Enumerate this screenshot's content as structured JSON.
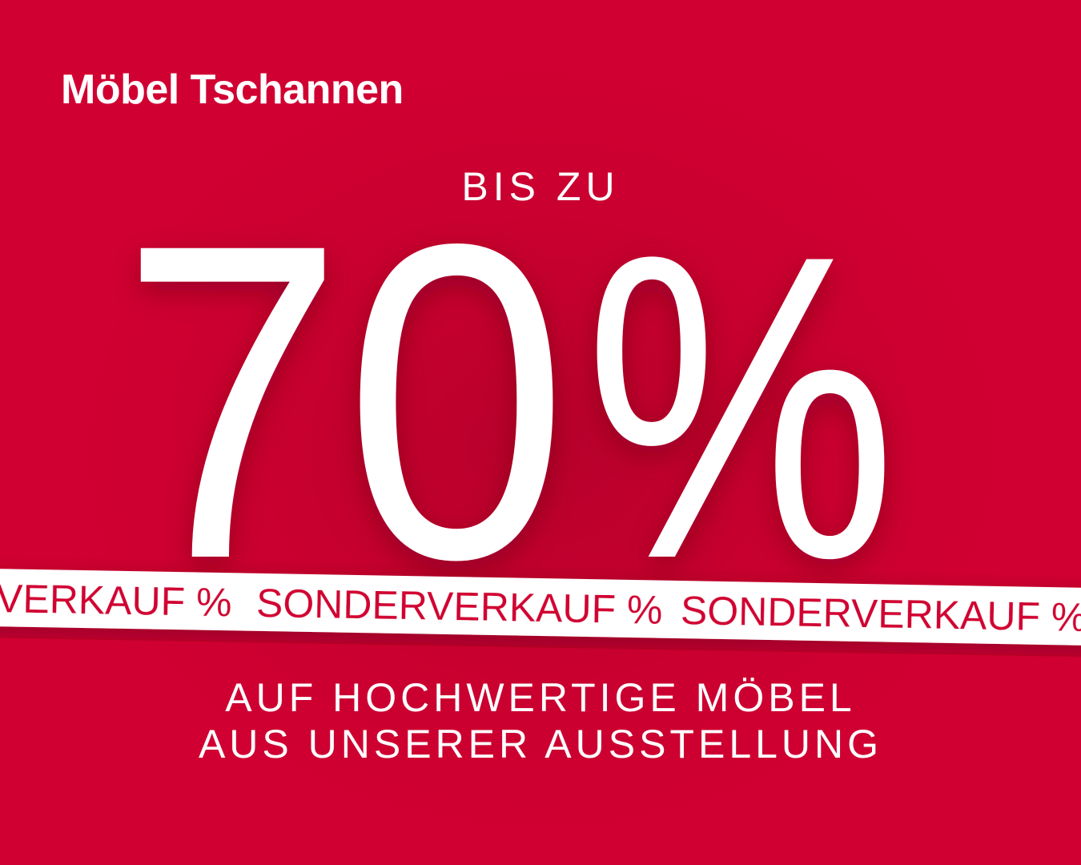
{
  "brand": {
    "name": "Möbel Tschannen"
  },
  "headline": {
    "prefix": "BIS ZU",
    "number": "70",
    "percent": "%"
  },
  "ribbon": {
    "text": "SONDERVERKAUF %",
    "text_lead": "VERKAUF %"
  },
  "footer": {
    "line1": "AUF HOCHWERTIGE MÖBEL",
    "line2": "AUS UNSERER AUSSTELLUNG"
  },
  "colors": {
    "background": "#d10032",
    "text": "#ffffff",
    "ribbon_text": "#d10032"
  }
}
